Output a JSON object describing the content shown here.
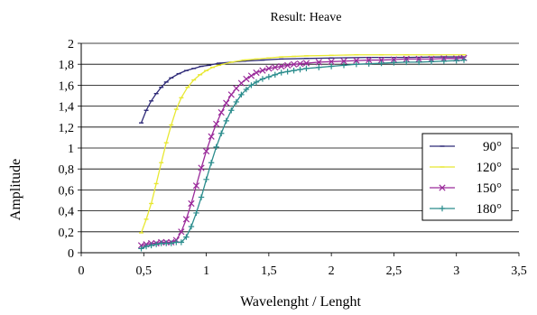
{
  "chart_data": {
    "type": "line",
    "title": "Result: Heave",
    "xlabel": "Wavelenght / Lenght",
    "ylabel": "Amplitude",
    "xlim": [
      0,
      3.5
    ],
    "ylim": [
      0,
      2
    ],
    "x_ticks": [
      "0",
      "0,5",
      "1",
      "1,5",
      "2",
      "2,5",
      "3",
      "3,5"
    ],
    "y_ticks": [
      "0",
      "0,2",
      "0,4",
      "0,6",
      "0,8",
      "1",
      "1,2",
      "1,4",
      "1,6",
      "1,8",
      "2"
    ],
    "grid": "horizontal",
    "legend_position": "right",
    "series": [
      {
        "name": "90°",
        "color": "#2e2a78",
        "marker": "dash",
        "x": [
          0.48,
          0.52,
          0.56,
          0.6,
          0.64,
          0.68,
          0.72,
          0.78,
          0.84,
          0.9,
          0.96,
          1.02,
          1.1,
          1.2,
          1.3,
          1.45,
          1.6,
          1.8,
          2.0,
          2.3,
          2.6,
          2.9,
          3.06
        ],
        "y": [
          1.24,
          1.36,
          1.45,
          1.52,
          1.58,
          1.63,
          1.67,
          1.71,
          1.74,
          1.76,
          1.78,
          1.79,
          1.81,
          1.82,
          1.83,
          1.84,
          1.85,
          1.855,
          1.86,
          1.865,
          1.865,
          1.87,
          1.87
        ]
      },
      {
        "name": "120°",
        "color": "#e8e832",
        "marker": "dash",
        "x": [
          0.48,
          0.52,
          0.56,
          0.6,
          0.64,
          0.68,
          0.72,
          0.76,
          0.8,
          0.85,
          0.9,
          0.95,
          1.0,
          1.05,
          1.1,
          1.2,
          1.3,
          1.4,
          1.5,
          1.6,
          1.7,
          1.8,
          2.0,
          2.2,
          2.4,
          2.6,
          2.8,
          3.06
        ],
        "y": [
          0.19,
          0.32,
          0.47,
          0.66,
          0.86,
          1.05,
          1.22,
          1.37,
          1.48,
          1.58,
          1.65,
          1.7,
          1.74,
          1.77,
          1.79,
          1.82,
          1.84,
          1.85,
          1.86,
          1.87,
          1.875,
          1.88,
          1.885,
          1.89,
          1.89,
          1.89,
          1.89,
          1.89
        ]
      },
      {
        "name": "150°",
        "color": "#9a2a9a",
        "marker": "x",
        "x": [
          0.48,
          0.52,
          0.56,
          0.6,
          0.64,
          0.68,
          0.72,
          0.76,
          0.8,
          0.84,
          0.88,
          0.92,
          0.96,
          1.0,
          1.04,
          1.08,
          1.12,
          1.16,
          1.2,
          1.24,
          1.28,
          1.32,
          1.36,
          1.4,
          1.45,
          1.5,
          1.55,
          1.6,
          1.65,
          1.7,
          1.75,
          1.8,
          1.9,
          2.0,
          2.1,
          2.2,
          2.3,
          2.4,
          2.5,
          2.6,
          2.7,
          2.8,
          2.9,
          3.0,
          3.06
        ],
        "y": [
          0.07,
          0.08,
          0.09,
          0.09,
          0.1,
          0.1,
          0.1,
          0.12,
          0.2,
          0.32,
          0.47,
          0.64,
          0.81,
          0.97,
          1.11,
          1.23,
          1.34,
          1.43,
          1.51,
          1.57,
          1.62,
          1.66,
          1.69,
          1.72,
          1.74,
          1.76,
          1.77,
          1.78,
          1.79,
          1.8,
          1.805,
          1.81,
          1.82,
          1.825,
          1.83,
          1.835,
          1.84,
          1.84,
          1.845,
          1.85,
          1.85,
          1.85,
          1.855,
          1.855,
          1.86
        ]
      },
      {
        "name": "180°",
        "color": "#2a8c8c",
        "marker": "plus",
        "x": [
          0.48,
          0.52,
          0.56,
          0.6,
          0.64,
          0.68,
          0.72,
          0.76,
          0.8,
          0.84,
          0.88,
          0.92,
          0.96,
          1.0,
          1.04,
          1.08,
          1.12,
          1.16,
          1.2,
          1.24,
          1.28,
          1.32,
          1.36,
          1.4,
          1.45,
          1.5,
          1.55,
          1.6,
          1.65,
          1.7,
          1.75,
          1.8,
          1.9,
          2.0,
          2.1,
          2.2,
          2.3,
          2.4,
          2.5,
          2.6,
          2.7,
          2.8,
          2.9,
          3.0,
          3.06
        ],
        "y": [
          0.04,
          0.06,
          0.07,
          0.08,
          0.09,
          0.09,
          0.09,
          0.1,
          0.1,
          0.15,
          0.25,
          0.38,
          0.53,
          0.7,
          0.86,
          1.01,
          1.14,
          1.26,
          1.36,
          1.44,
          1.51,
          1.56,
          1.6,
          1.63,
          1.66,
          1.68,
          1.7,
          1.72,
          1.73,
          1.74,
          1.75,
          1.76,
          1.77,
          1.78,
          1.79,
          1.8,
          1.805,
          1.81,
          1.815,
          1.82,
          1.82,
          1.825,
          1.83,
          1.835,
          1.84
        ]
      }
    ]
  }
}
